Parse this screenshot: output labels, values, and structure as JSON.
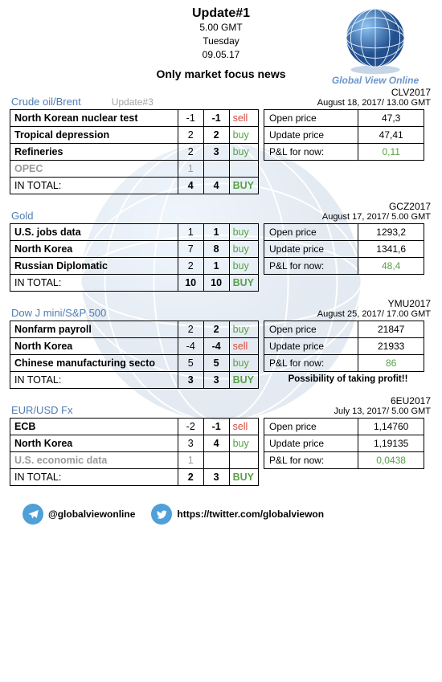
{
  "header": {
    "title": "Update#1",
    "time": "5.00 GMT",
    "day": "Tuesday",
    "date": "09.05.17",
    "subtitle": "Only market focus news",
    "logo_label": "Global View Online"
  },
  "colors": {
    "section_title": "#4f7cb3",
    "grey_text": "#9a9a9a",
    "sell": "#d94a3f",
    "buy": "#56a147",
    "pnl_pos": "#56a147",
    "border": "#000000",
    "icon_bg": "#50a0d8"
  },
  "sections": [
    {
      "title": "Crude oil/Brent",
      "update_tag": "Update#3",
      "code": "CLV2017",
      "date": "August 18, 2017/ 13.00 GMT",
      "rows": [
        {
          "label": "North Korean nuclear test",
          "n1": "-1",
          "n2": "-1",
          "act": "sell",
          "act_cls": "sell"
        },
        {
          "label": "Tropical depression",
          "n1": "2",
          "n2": "2",
          "act": "buy",
          "act_cls": "buy"
        },
        {
          "label": "Refineries",
          "n1": "2",
          "n2": "3",
          "act": "buy",
          "act_cls": "buy"
        },
        {
          "label": "OPEC",
          "n1": "1",
          "n2": "",
          "act": "",
          "grey": true
        }
      ],
      "total": {
        "label": "IN TOTAL:",
        "n1": "4",
        "n2": "4",
        "act": "BUY",
        "act_cls": "buy"
      },
      "right": [
        {
          "k": "Open price",
          "v": "47,3"
        },
        {
          "k": "Update price",
          "v": "47,41"
        },
        {
          "k": "P&L for now:",
          "v": "0,11",
          "v_cls": "pnl-pos"
        }
      ]
    },
    {
      "title": "Gold",
      "code": "GCZ2017",
      "date": "August 17, 2017/ 5.00 GMT",
      "rows": [
        {
          "label": "U.S. jobs data",
          "n1": "1",
          "n2": "1",
          "act": "buy",
          "act_cls": "buy"
        },
        {
          "label": "North Korea",
          "n1": "7",
          "n2": "8",
          "act": "buy",
          "act_cls": "buy"
        },
        {
          "label": "Russian Diplomatic",
          "n1": "2",
          "n2": "1",
          "act": "buy",
          "act_cls": "buy"
        }
      ],
      "total": {
        "label": "IN TOTAL:",
        "n1": "10",
        "n2": "10",
        "act": "BUY",
        "act_cls": "buy"
      },
      "right": [
        {
          "k": "Open price",
          "v": "1293,2"
        },
        {
          "k": "Update price",
          "v": "1341,6"
        },
        {
          "k": "P&L for now:",
          "v": "48,4",
          "v_cls": "pnl-pos"
        }
      ]
    },
    {
      "title": "Dow J mini/S&P 500",
      "code": "YMU2017",
      "date": "August 25, 2017/ 17.00 GMT",
      "rows": [
        {
          "label": "Nonfarm payroll",
          "n1": "2",
          "n2": "2",
          "act": "buy",
          "act_cls": "buy"
        },
        {
          "label": "North Korea",
          "n1": "-4",
          "n2": "-4",
          "act": "sell",
          "act_cls": "sell"
        },
        {
          "label": "Chinese manufacturing secto",
          "n1": "5",
          "n2": "5",
          "act": "buy",
          "act_cls": "buy"
        }
      ],
      "total": {
        "label": "IN TOTAL:",
        "n1": "3",
        "n2": "3",
        "act": "BUY",
        "act_cls": "buy"
      },
      "right": [
        {
          "k": "Open price",
          "v": "21847"
        },
        {
          "k": "Update price",
          "v": "21933"
        },
        {
          "k": "P&L for now:",
          "v": "86",
          "v_cls": "pnl-pos"
        }
      ],
      "note": "Possibility of taking profit!!"
    },
    {
      "title": "EUR/USD Fx",
      "code": "6EU2017",
      "date": "July 13, 2017/ 5.00 GMT",
      "rows": [
        {
          "label": "ECB",
          "n1": "-2",
          "n2": "-1",
          "act": "sell",
          "act_cls": "sell"
        },
        {
          "label": "North Korea",
          "n1": "3",
          "n2": "4",
          "act": "buy",
          "act_cls": "buy"
        },
        {
          "label": "U.S. economic data",
          "n1": "1",
          "n2": "",
          "act": "",
          "grey": true
        }
      ],
      "total": {
        "label": "IN TOTAL:",
        "n1": "2",
        "n2": "3",
        "act": "BUY",
        "act_cls": "buy"
      },
      "right": [
        {
          "k": "Open price",
          "v": "1,14760"
        },
        {
          "k": "Update price",
          "v": "1,19135"
        },
        {
          "k": "P&L for now:",
          "v": "0,0438",
          "v_cls": "pnl-pos"
        }
      ]
    }
  ],
  "footer": {
    "telegram": "@globalviewonline",
    "twitter": "https://twitter.com/globalviewon"
  }
}
